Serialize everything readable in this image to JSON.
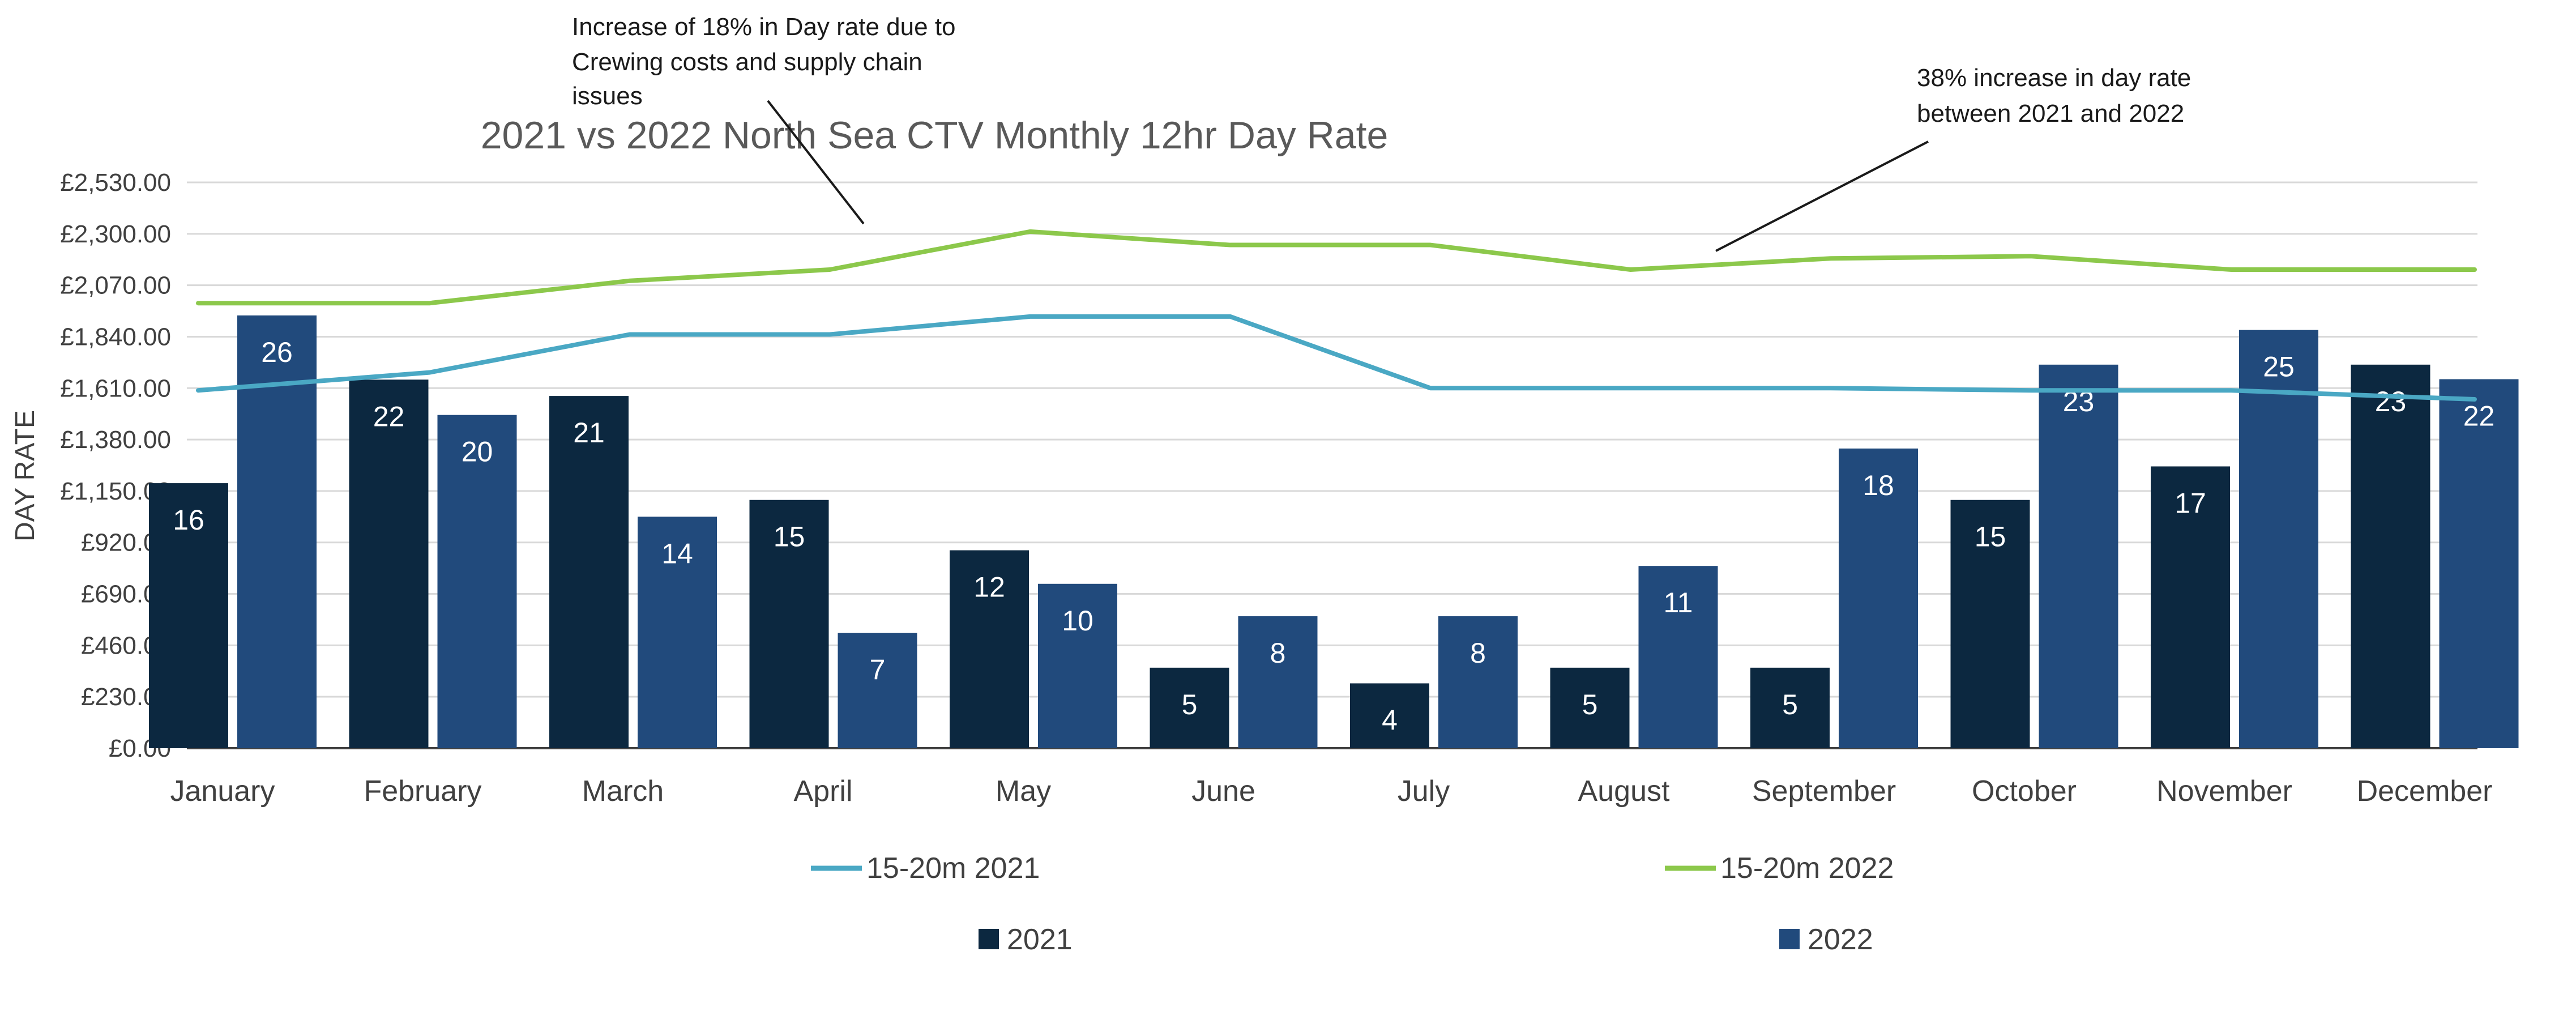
{
  "chart_data": {
    "type": "bar",
    "title": "2021 vs 2022 North Sea CTV Monthly 12hr Day Rate",
    "ylabel": "DAY RATE",
    "xlabel": "",
    "ylim": [
      0,
      2530
    ],
    "yticks": [
      0,
      230,
      460,
      690,
      920,
      1150,
      1380,
      1610,
      1840,
      2070,
      2300,
      2530
    ],
    "ytick_labels": [
      "£0.00",
      "£230.00",
      "£460.00",
      "£690.00",
      "£920.00",
      "£1,150.00",
      "£1,380.00",
      "£1,610.00",
      "£1,840.00",
      "£2,070.00",
      "£2,300.00",
      "£2,530.00"
    ],
    "grid": true,
    "legend_position": "bottom",
    "categories": [
      "January",
      "February",
      "March",
      "April",
      "May",
      "June",
      "July",
      "August",
      "September",
      "October",
      "November",
      "December"
    ],
    "bar_series": [
      {
        "name": "2021",
        "color": "#0c2840",
        "values": [
          1185,
          1648,
          1575,
          1110,
          885,
          360,
          290,
          360,
          360,
          1110,
          1260,
          1715
        ],
        "labels": [
          "16",
          "22",
          "21",
          "15",
          "12",
          "5",
          "4",
          "5",
          "5",
          "15",
          "17",
          "23"
        ]
      },
      {
        "name": "2022",
        "color": "#214a7c",
        "values": [
          1935,
          1490,
          1035,
          515,
          735,
          590,
          590,
          815,
          1340,
          1715,
          1870,
          1650
        ],
        "labels": [
          "26",
          "20",
          "14",
          "7",
          "10",
          "8",
          "8",
          "11",
          "18",
          "23",
          "25",
          "22"
        ]
      }
    ],
    "line_series": [
      {
        "name": "15-20m 2021",
        "color": "#4aa8c4",
        "values": [
          1600,
          1680,
          1850,
          1850,
          1930,
          1930,
          1610,
          1610,
          1610,
          1600,
          1600,
          1560
        ]
      },
      {
        "name": "15-20m 2022",
        "color": "#8cc84b",
        "values": [
          1990,
          1990,
          2090,
          2140,
          2310,
          2250,
          2250,
          2140,
          2190,
          2200,
          2140,
          2140
        ]
      }
    ],
    "annotations": [
      {
        "text_lines": [
          "Increase of 18% in Day rate due to",
          "Crewing costs and supply chain",
          "issues"
        ]
      },
      {
        "text_lines": [
          "38% increase in day rate",
          "between 2021 and 2022"
        ]
      }
    ]
  }
}
